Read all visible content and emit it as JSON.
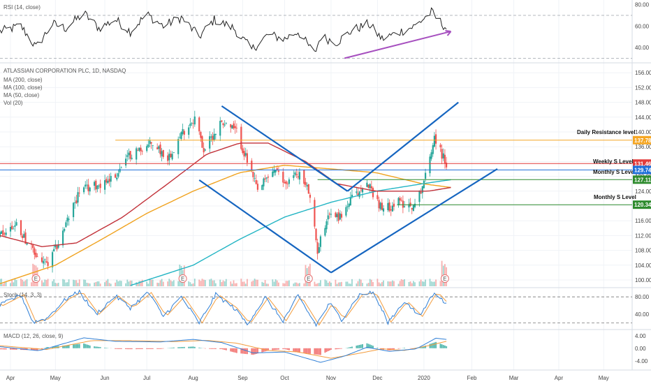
{
  "symbol_line": "ATLASSIAN CORPORATION PLC, 1D, NASDAQ",
  "indicators": [
    "MA (200, close)",
    "MA (100, close)",
    "MA (50, close)",
    "Vol (20)"
  ],
  "colors": {
    "up": "#26a69a",
    "down": "#ef5350",
    "ma50": "#c2323a",
    "ma100": "#f0a21e",
    "ma200": "#23b5c4",
    "trend": "#1565c0",
    "rsi_trend": "#a64fbf",
    "resistance": "#f5a623",
    "weekly": "#1e6fd9",
    "monthly": "#2e8b2e",
    "last": "#e23b3b"
  },
  "annotations": {
    "daily_resistance": "Daily Resistance level",
    "weekly_support": "Weekly S Level",
    "monthly_support_1": "Monthly S Level",
    "monthly_support_2": "Monthly S Level",
    "earnings_marker": "E"
  },
  "chart_data": [
    {
      "type": "line",
      "title": "RSI (14, close)",
      "y_ticks": [
        "80.00",
        "60.00",
        "40.00"
      ],
      "y_tick_values": [
        80,
        60,
        40
      ],
      "guides": [
        70,
        30
      ],
      "ylim": [
        27,
        83
      ],
      "anchors": [
        {
          "d": "2019-03-25",
          "v": 55
        },
        {
          "d": "2019-04-08",
          "v": 60
        },
        {
          "d": "2019-04-18",
          "v": 40
        },
        {
          "d": "2019-04-29",
          "v": 62
        },
        {
          "d": "2019-05-08",
          "v": 58
        },
        {
          "d": "2019-05-20",
          "v": 72
        },
        {
          "d": "2019-05-30",
          "v": 58
        },
        {
          "d": "2019-06-10",
          "v": 66
        },
        {
          "d": "2019-06-20",
          "v": 55
        },
        {
          "d": "2019-07-01",
          "v": 71
        },
        {
          "d": "2019-07-12",
          "v": 60
        },
        {
          "d": "2019-07-24",
          "v": 68
        },
        {
          "d": "2019-08-05",
          "v": 50
        },
        {
          "d": "2019-08-15",
          "v": 66
        },
        {
          "d": "2019-08-28",
          "v": 58
        },
        {
          "d": "2019-09-09",
          "v": 38
        },
        {
          "d": "2019-09-20",
          "v": 52
        },
        {
          "d": "2019-10-01",
          "v": 48
        },
        {
          "d": "2019-10-10",
          "v": 55
        },
        {
          "d": "2019-10-21",
          "v": 34
        },
        {
          "d": "2019-10-25",
          "v": 50
        },
        {
          "d": "2019-11-05",
          "v": 45
        },
        {
          "d": "2019-11-15",
          "v": 56
        },
        {
          "d": "2019-11-26",
          "v": 62
        },
        {
          "d": "2019-12-05",
          "v": 48
        },
        {
          "d": "2019-12-16",
          "v": 54
        },
        {
          "d": "2019-12-27",
          "v": 60
        },
        {
          "d": "2020-01-07",
          "v": 73
        },
        {
          "d": "2020-01-10",
          "v": 68
        },
        {
          "d": "2020-01-17",
          "v": 58
        }
      ],
      "trendline": {
        "from": {
          "d": "2019-11-10",
          "v": 30
        },
        "to": {
          "d": "2020-01-20",
          "v": 55
        }
      }
    },
    {
      "type": "candlestick",
      "title": "ATLASSIAN CORPORATION PLC, 1D, NASDAQ",
      "y_ticks": [
        "156.00",
        "152.00",
        "148.00",
        "144.00",
        "140.00",
        "136.00",
        "132.00",
        "128.00",
        "124.00",
        "120.00",
        "116.00",
        "112.00",
        "108.00",
        "104.00",
        "100.00"
      ],
      "y_tick_values": [
        156,
        152,
        148,
        144,
        140,
        136,
        132,
        128,
        124,
        120,
        116,
        112,
        108,
        104,
        100
      ],
      "ylim": [
        98.3,
        158.3
      ],
      "x_ticks": [
        "Apr",
        "May",
        "Jun",
        "Jul",
        "Aug",
        "Sep",
        "Oct",
        "Nov",
        "Dec",
        "2020",
        "Feb",
        "Mar",
        "Apr",
        "May"
      ],
      "x_tick_dates": [
        "2019-04-01",
        "2019-05-01",
        "2019-06-03",
        "2019-07-01",
        "2019-08-01",
        "2019-09-03",
        "2019-10-01",
        "2019-11-01",
        "2019-12-02",
        "2020-01-02",
        "2020-02-03",
        "2020-03-02",
        "2020-04-01",
        "2020-05-01"
      ],
      "price_anchors": [
        {
          "d": "2019-03-25",
          "v": 112
        },
        {
          "d": "2019-04-05",
          "v": 115
        },
        {
          "d": "2019-04-17",
          "v": 107
        },
        {
          "d": "2019-04-26",
          "v": 104
        },
        {
          "d": "2019-05-03",
          "v": 110
        },
        {
          "d": "2019-05-17",
          "v": 124
        },
        {
          "d": "2019-05-31",
          "v": 126
        },
        {
          "d": "2019-06-10",
          "v": 128
        },
        {
          "d": "2019-06-20",
          "v": 134
        },
        {
          "d": "2019-07-05",
          "v": 137
        },
        {
          "d": "2019-07-15",
          "v": 133
        },
        {
          "d": "2019-07-25",
          "v": 140
        },
        {
          "d": "2019-08-02",
          "v": 144
        },
        {
          "d": "2019-08-08",
          "v": 135
        },
        {
          "d": "2019-08-20",
          "v": 143
        },
        {
          "d": "2019-08-30",
          "v": 140
        },
        {
          "d": "2019-09-06",
          "v": 132
        },
        {
          "d": "2019-09-13",
          "v": 124
        },
        {
          "d": "2019-09-24",
          "v": 130
        },
        {
          "d": "2019-10-01",
          "v": 126
        },
        {
          "d": "2019-10-10",
          "v": 129
        },
        {
          "d": "2019-10-17",
          "v": 124
        },
        {
          "d": "2019-10-23",
          "v": 108
        },
        {
          "d": "2019-10-30",
          "v": 118
        },
        {
          "d": "2019-11-07",
          "v": 117
        },
        {
          "d": "2019-11-15",
          "v": 122
        },
        {
          "d": "2019-11-26",
          "v": 126
        },
        {
          "d": "2019-12-05",
          "v": 119
        },
        {
          "d": "2019-12-16",
          "v": 121
        },
        {
          "d": "2019-12-27",
          "v": 120
        },
        {
          "d": "2020-01-03",
          "v": 128
        },
        {
          "d": "2020-01-09",
          "v": 139
        },
        {
          "d": "2020-01-14",
          "v": 134
        },
        {
          "d": "2020-01-17",
          "v": 131.5
        }
      ],
      "earnings_dates": [
        "2019-04-18",
        "2019-07-25",
        "2019-10-17",
        "2020-01-16"
      ],
      "ma50": [
        {
          "d": "2019-03-25",
          "v": 112
        },
        {
          "d": "2019-04-22",
          "v": 109
        },
        {
          "d": "2019-05-15",
          "v": 110
        },
        {
          "d": "2019-06-15",
          "v": 117
        },
        {
          "d": "2019-07-15",
          "v": 126
        },
        {
          "d": "2019-08-10",
          "v": 134
        },
        {
          "d": "2019-09-01",
          "v": 137
        },
        {
          "d": "2019-09-20",
          "v": 137
        },
        {
          "d": "2019-10-15",
          "v": 132
        },
        {
          "d": "2019-11-05",
          "v": 126
        },
        {
          "d": "2019-12-01",
          "v": 124
        },
        {
          "d": "2020-01-05",
          "v": 124
        },
        {
          "d": "2020-01-20",
          "v": 125
        }
      ],
      "ma100": [
        {
          "d": "2019-03-25",
          "v": 99
        },
        {
          "d": "2019-05-01",
          "v": 104
        },
        {
          "d": "2019-06-01",
          "v": 111
        },
        {
          "d": "2019-07-01",
          "v": 118
        },
        {
          "d": "2019-08-01",
          "v": 124
        },
        {
          "d": "2019-09-01",
          "v": 129
        },
        {
          "d": "2019-10-01",
          "v": 131
        },
        {
          "d": "2019-11-01",
          "v": 130
        },
        {
          "d": "2019-12-01",
          "v": 129
        },
        {
          "d": "2020-01-01",
          "v": 126
        },
        {
          "d": "2020-01-20",
          "v": 125
        }
      ],
      "ma200": [
        {
          "d": "2019-06-20",
          "v": 98.5
        },
        {
          "d": "2019-08-01",
          "v": 104
        },
        {
          "d": "2019-09-01",
          "v": 111
        },
        {
          "d": "2019-10-01",
          "v": 117
        },
        {
          "d": "2019-11-01",
          "v": 121
        },
        {
          "d": "2019-12-01",
          "v": 124
        },
        {
          "d": "2020-01-01",
          "v": 126
        },
        {
          "d": "2020-01-20",
          "v": 127.1
        }
      ],
      "levels": [
        {
          "name": "daily_resistance",
          "value": 137.78,
          "label": "137.78",
          "color": "#f5a623",
          "from": "2019-06-10"
        },
        {
          "name": "last_price",
          "value": 131.46,
          "label": "131.46",
          "color": "#e23b3b",
          "from": "2019-03-25"
        },
        {
          "name": "weekly_support",
          "value": 129.74,
          "label": "129.74",
          "color": "#1e6fd9",
          "from": "2019-03-25"
        },
        {
          "name": "monthly_support_1",
          "value": 127.11,
          "label": "127.11",
          "color": "#2e8b2e",
          "from": "2019-10-23"
        },
        {
          "name": "monthly_support_2",
          "value": 120.34,
          "label": "120.34",
          "color": "#2e8b2e",
          "from": "2019-12-15"
        }
      ],
      "trendlines": [
        {
          "from": {
            "d": "2019-08-05",
            "v": 127
          },
          "to": {
            "d": "2019-11-01",
            "v": 102
          }
        },
        {
          "from": {
            "d": "2019-08-20",
            "v": 147
          },
          "to": {
            "d": "2019-11-12",
            "v": 124
          }
        },
        {
          "from": {
            "d": "2019-11-01",
            "v": 102
          },
          "to": {
            "d": "2020-02-20",
            "v": 130
          }
        },
        {
          "from": {
            "d": "2019-11-12",
            "v": 124
          },
          "to": {
            "d": "2020-01-25",
            "v": 148
          }
        }
      ]
    },
    {
      "type": "line",
      "title": "Stoch (14, 3, 3)",
      "y_ticks": [
        "80.00",
        "40.00"
      ],
      "y_tick_values": [
        80,
        40
      ],
      "guides": [
        80,
        20
      ],
      "ylim": [
        8,
        98
      ],
      "anchors": [
        {
          "d": "2019-03-25",
          "v": 60
        },
        {
          "d": "2019-04-08",
          "v": 85
        },
        {
          "d": "2019-04-16",
          "v": 22
        },
        {
          "d": "2019-04-25",
          "v": 30
        },
        {
          "d": "2019-05-08",
          "v": 75
        },
        {
          "d": "2019-05-17",
          "v": 92
        },
        {
          "d": "2019-05-28",
          "v": 40
        },
        {
          "d": "2019-06-10",
          "v": 82
        },
        {
          "d": "2019-06-20",
          "v": 55
        },
        {
          "d": "2019-07-02",
          "v": 90
        },
        {
          "d": "2019-07-12",
          "v": 35
        },
        {
          "d": "2019-07-24",
          "v": 80
        },
        {
          "d": "2019-08-05",
          "v": 20
        },
        {
          "d": "2019-08-16",
          "v": 85
        },
        {
          "d": "2019-08-28",
          "v": 55
        },
        {
          "d": "2019-09-06",
          "v": 18
        },
        {
          "d": "2019-09-18",
          "v": 78
        },
        {
          "d": "2019-09-30",
          "v": 25
        },
        {
          "d": "2019-10-10",
          "v": 82
        },
        {
          "d": "2019-10-22",
          "v": 15
        },
        {
          "d": "2019-10-31",
          "v": 65
        },
        {
          "d": "2019-11-08",
          "v": 28
        },
        {
          "d": "2019-11-20",
          "v": 85
        },
        {
          "d": "2019-11-29",
          "v": 90
        },
        {
          "d": "2019-12-09",
          "v": 22
        },
        {
          "d": "2019-12-20",
          "v": 70
        },
        {
          "d": "2019-12-30",
          "v": 35
        },
        {
          "d": "2020-01-09",
          "v": 92
        },
        {
          "d": "2020-01-17",
          "v": 62
        }
      ]
    },
    {
      "type": "bar",
      "title": "MACD (12, 26, close, 9)",
      "y_ticks": [
        "4.00",
        "0.00",
        "-4.00"
      ],
      "y_tick_values": [
        4,
        0,
        -4
      ],
      "ylim": [
        -6.5,
        5.5
      ],
      "macd": [
        {
          "d": "2019-03-25",
          "v": 0.5
        },
        {
          "d": "2019-04-20",
          "v": -0.8
        },
        {
          "d": "2019-05-20",
          "v": 3.3
        },
        {
          "d": "2019-06-10",
          "v": 2.2
        },
        {
          "d": "2019-07-10",
          "v": 2.0
        },
        {
          "d": "2019-08-01",
          "v": 2.8
        },
        {
          "d": "2019-08-20",
          "v": 1.8
        },
        {
          "d": "2019-09-10",
          "v": -1.5
        },
        {
          "d": "2019-10-01",
          "v": -1.2
        },
        {
          "d": "2019-10-25",
          "v": -4.5
        },
        {
          "d": "2019-11-10",
          "v": -2.5
        },
        {
          "d": "2019-11-25",
          "v": 0.3
        },
        {
          "d": "2019-12-10",
          "v": -1.0
        },
        {
          "d": "2019-12-28",
          "v": -0.2
        },
        {
          "d": "2020-01-10",
          "v": 3.2
        },
        {
          "d": "2020-01-17",
          "v": 2.8
        }
      ],
      "signal": [
        {
          "d": "2019-03-25",
          "v": 0.8
        },
        {
          "d": "2019-04-25",
          "v": -0.4
        },
        {
          "d": "2019-05-25",
          "v": 2.4
        },
        {
          "d": "2019-06-20",
          "v": 2.4
        },
        {
          "d": "2019-07-20",
          "v": 2.1
        },
        {
          "d": "2019-08-10",
          "v": 2.5
        },
        {
          "d": "2019-08-30",
          "v": 1.6
        },
        {
          "d": "2019-09-20",
          "v": -0.7
        },
        {
          "d": "2019-10-10",
          "v": -1.2
        },
        {
          "d": "2019-11-01",
          "v": -3.2
        },
        {
          "d": "2019-11-20",
          "v": -1.6
        },
        {
          "d": "2019-12-05",
          "v": -0.2
        },
        {
          "d": "2019-12-20",
          "v": -0.7
        },
        {
          "d": "2020-01-05",
          "v": 0.8
        },
        {
          "d": "2020-01-17",
          "v": 2.2
        }
      ]
    }
  ]
}
